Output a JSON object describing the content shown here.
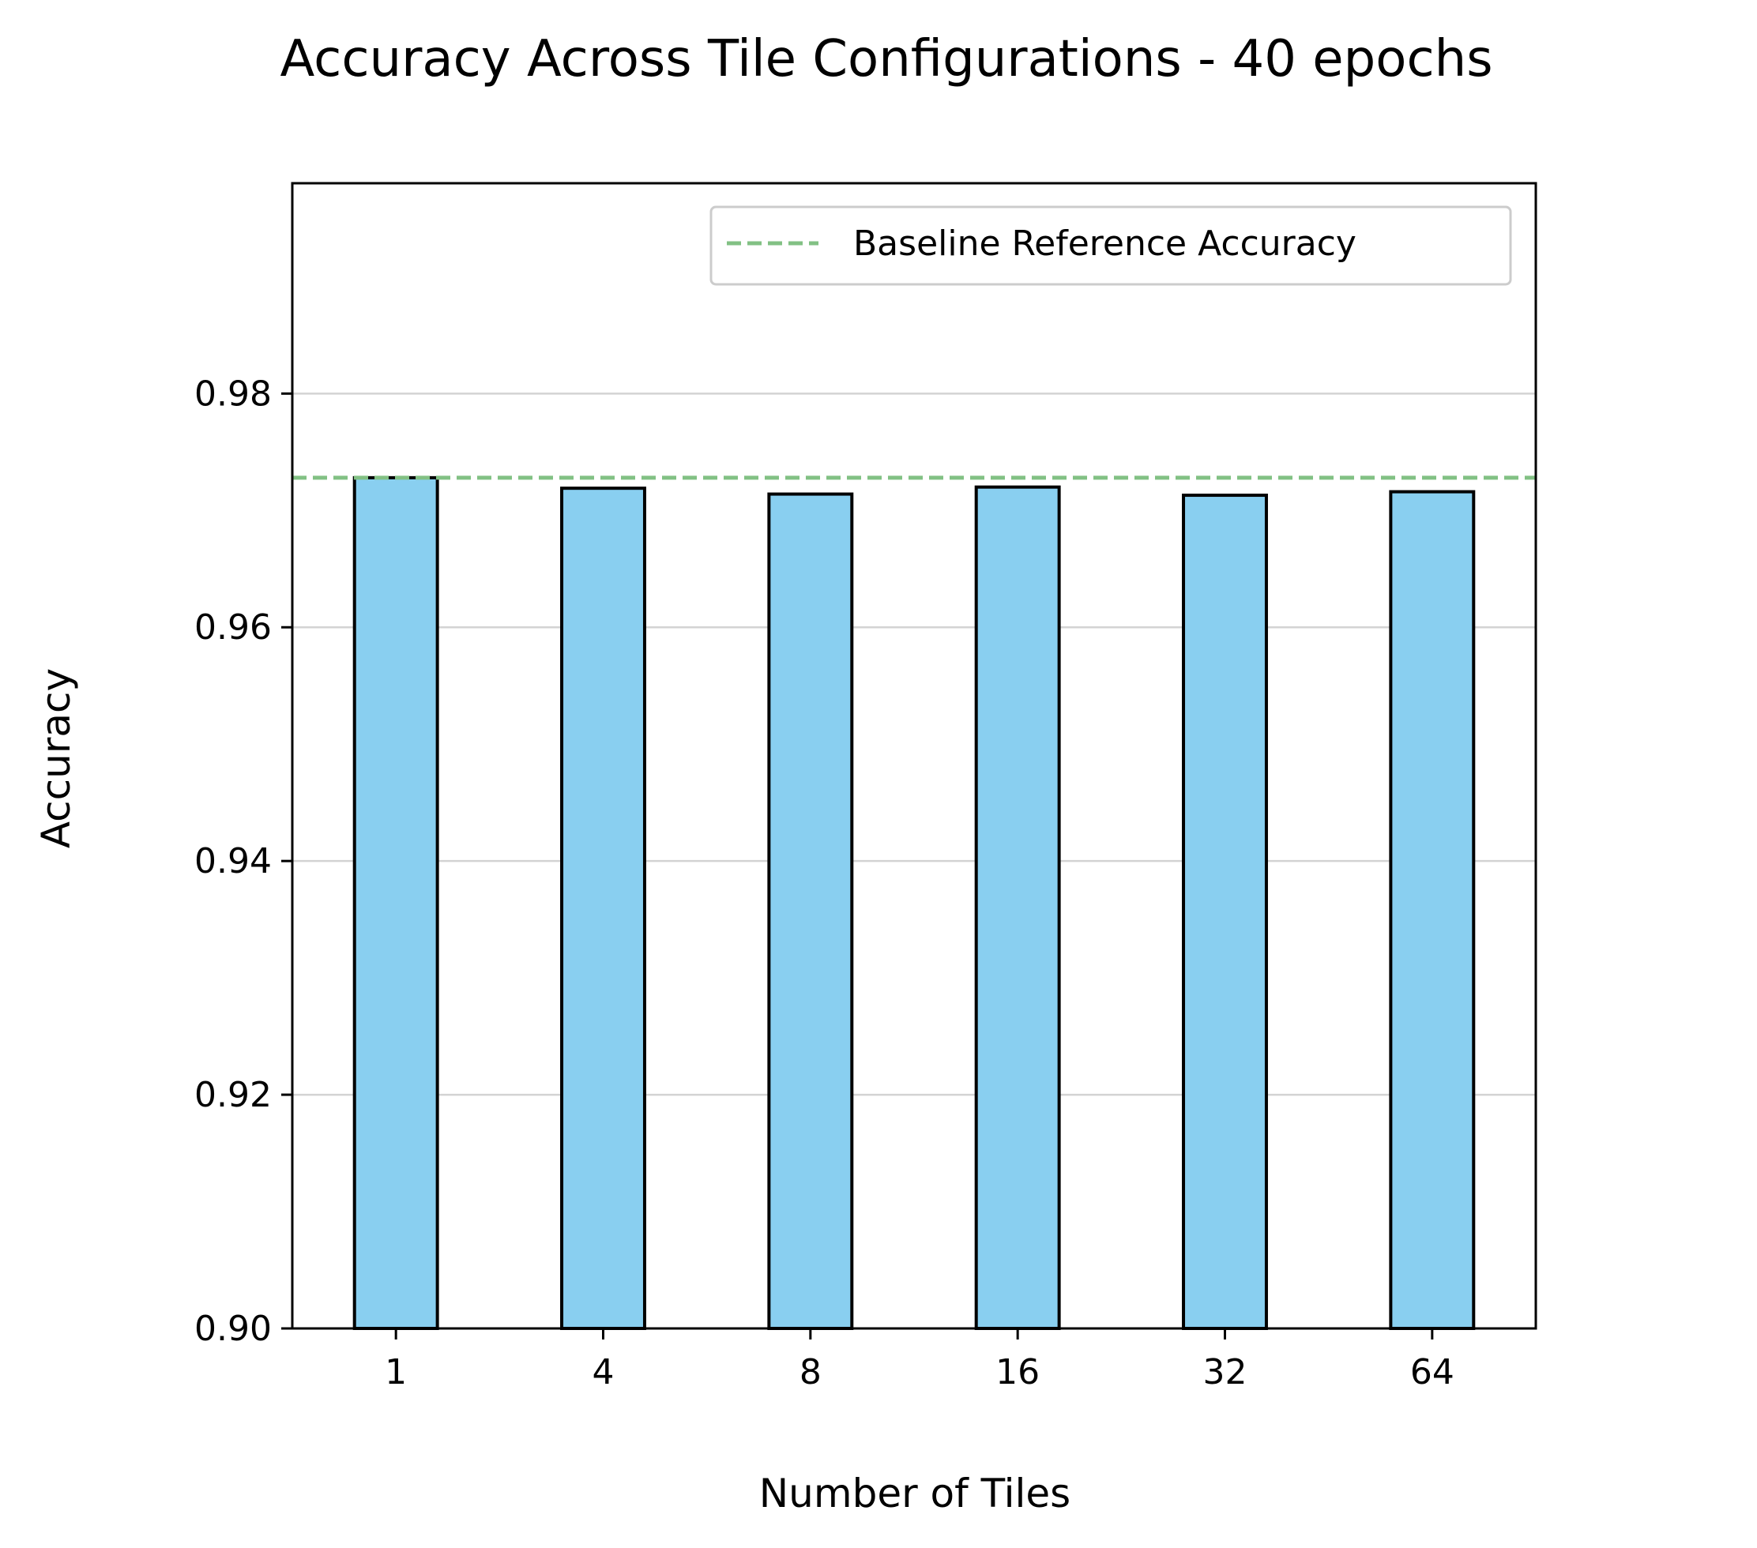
{
  "chart_data": {
    "type": "bar",
    "title": "Accuracy Across Tile Configurations - 40 epochs",
    "xlabel": "Number of Tiles",
    "ylabel": "Accuracy",
    "categories": [
      "1",
      "4",
      "8",
      "16",
      "32",
      "64"
    ],
    "values": [
      0.9728,
      0.9719,
      0.9714,
      0.972,
      0.9713,
      0.9716
    ],
    "ylim": [
      0.9,
      0.998
    ],
    "yticks": [
      0.9,
      0.92,
      0.94,
      0.96,
      0.98
    ],
    "ytick_labels": [
      "0.90",
      "0.92",
      "0.94",
      "0.96",
      "0.98"
    ],
    "grid": "horizontal",
    "reference_line": {
      "name": "Baseline Reference Accuracy",
      "value": 0.9728,
      "style": "dashed"
    },
    "legend": {
      "placement": "top-right",
      "entries": [
        "Baseline Reference Accuracy"
      ]
    },
    "colors": {
      "bar_fill": "#89CFF0",
      "bar_edge": "#000000",
      "reference_line": "#82C184",
      "grid": "#d3d3d3"
    }
  }
}
